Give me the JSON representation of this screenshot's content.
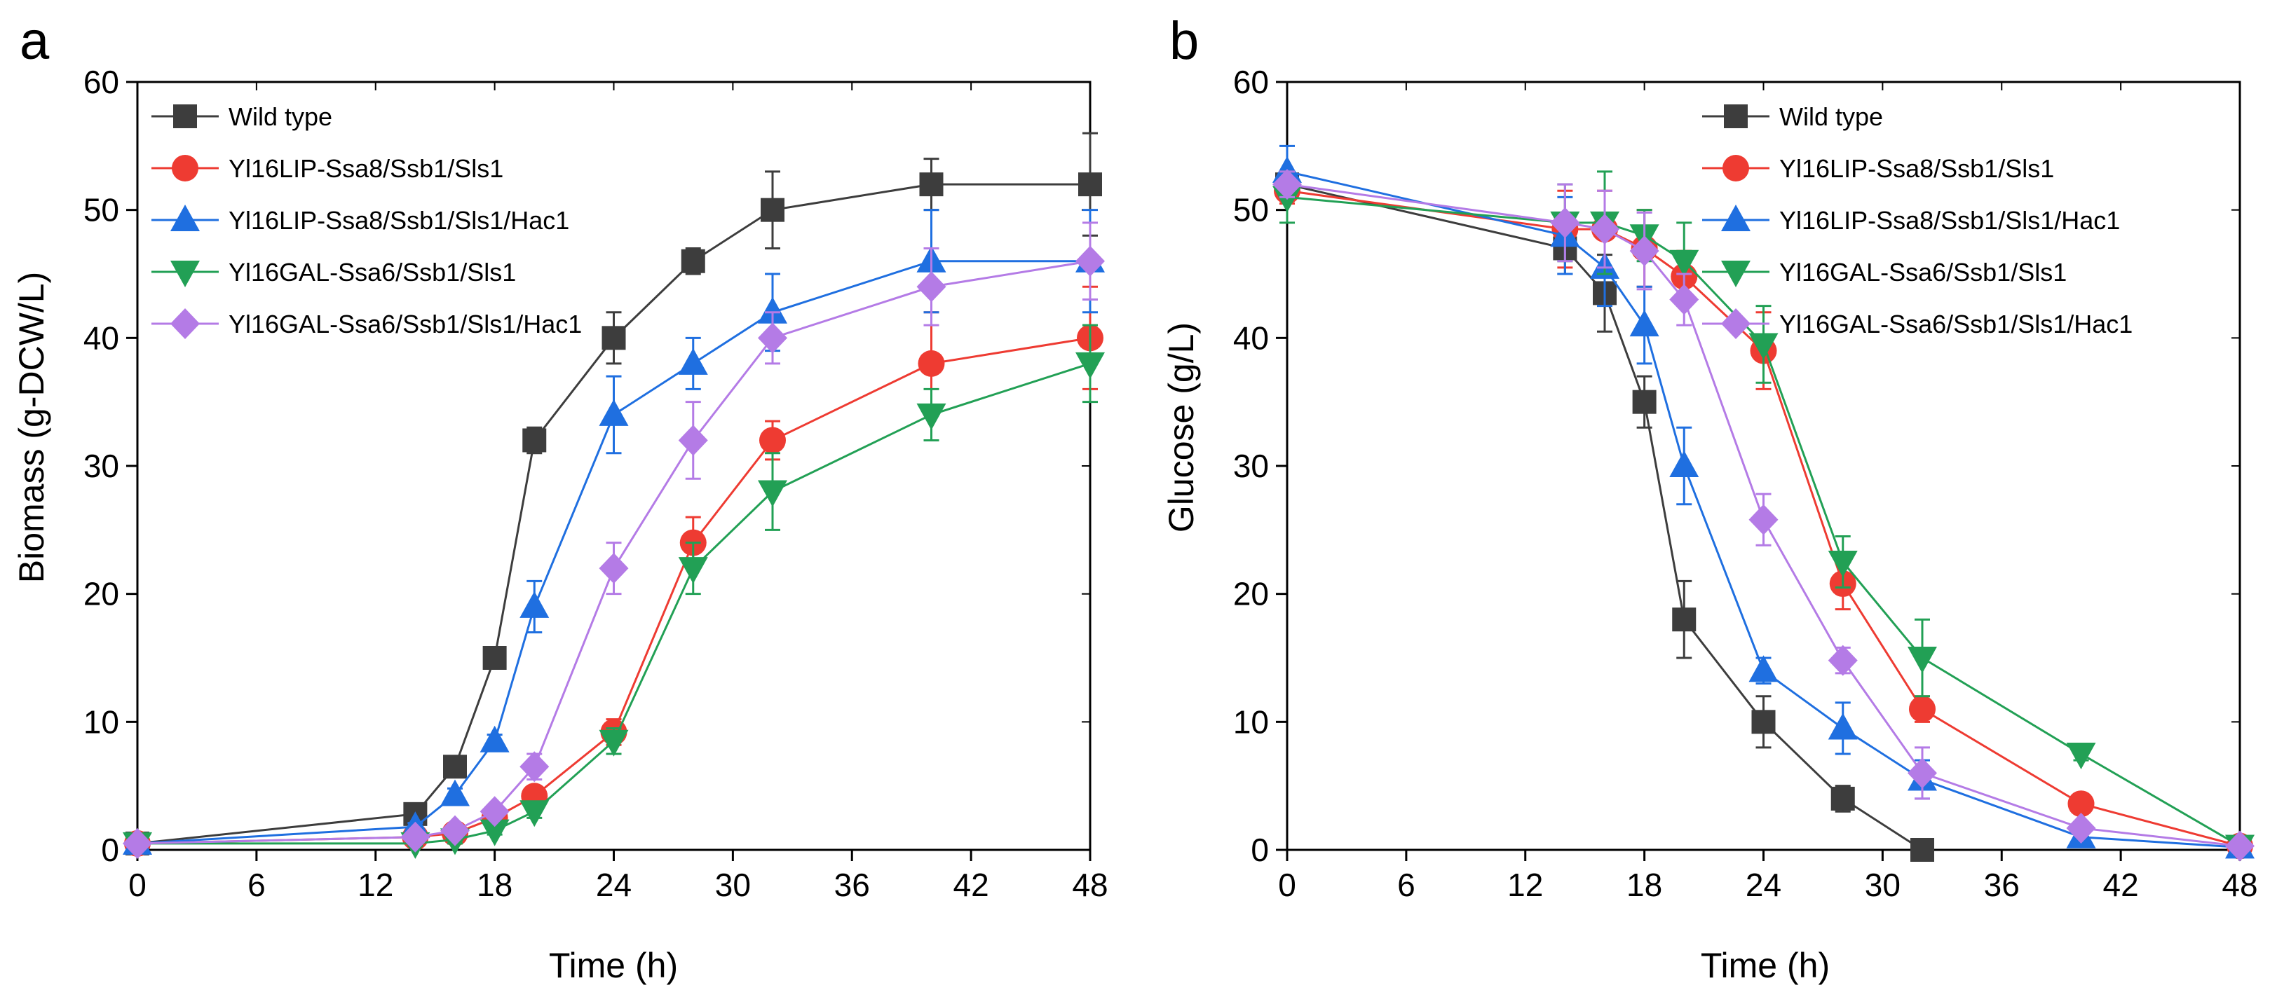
{
  "chart_data": [
    {
      "panel_label": "a",
      "type": "line",
      "xlabel": "Time (h)",
      "ylabel": "Biomass (g-DCW/L)",
      "xlim": [
        0,
        48
      ],
      "ylim": [
        0,
        60
      ],
      "xticks": [
        0,
        6,
        12,
        18,
        24,
        30,
        36,
        42,
        48
      ],
      "yticks": [
        0,
        10,
        20,
        30,
        40,
        50,
        60
      ],
      "legend_position": "top-left",
      "series": [
        {
          "name": "Wild type",
          "color": "#3d3d3d",
          "marker": "square",
          "x": [
            0,
            14,
            16,
            18,
            20,
            24,
            28,
            32,
            40,
            48
          ],
          "y": [
            0.5,
            2.8,
            6.5,
            15,
            32,
            40,
            46,
            50,
            52,
            52
          ],
          "err": [
            0.2,
            0.5,
            0.5,
            0.5,
            1,
            2,
            1,
            3,
            2,
            4
          ]
        },
        {
          "name": "Yl16LIP-Ssa8/Ssb1/Sls1",
          "color": "#ee3b32",
          "marker": "circle",
          "x": [
            0,
            14,
            16,
            18,
            20,
            24,
            28,
            32,
            40,
            48
          ],
          "y": [
            0.5,
            1.0,
            1.3,
            2.5,
            4.2,
            9.2,
            24,
            32,
            38,
            40
          ],
          "err": [
            0.2,
            0.3,
            0.3,
            0.5,
            0.5,
            1,
            2,
            1.5,
            4,
            4
          ]
        },
        {
          "name": "Yl16LIP-Ssa8/Ssb1/Sls1/Hac1",
          "color": "#1f6fe0",
          "marker": "triangle-up",
          "x": [
            0,
            14,
            16,
            18,
            20,
            24,
            28,
            32,
            40,
            48
          ],
          "y": [
            0.5,
            1.8,
            4.3,
            8.5,
            19,
            34,
            38,
            42,
            46,
            46
          ],
          "err": [
            0.2,
            0.3,
            0.5,
            0.5,
            2,
            3,
            2,
            3,
            4,
            4
          ]
        },
        {
          "name": "Yl16GAL-Ssa6/Ssb1/Sls1",
          "color": "#22a055",
          "marker": "triangle-down",
          "x": [
            0,
            14,
            16,
            18,
            20,
            24,
            28,
            32,
            40,
            48
          ],
          "y": [
            0.5,
            0.5,
            0.8,
            1.5,
            3.0,
            8.5,
            22,
            28,
            34,
            38
          ],
          "err": [
            0.2,
            0.2,
            0.3,
            0.3,
            0.5,
            1,
            2,
            3,
            2,
            3
          ]
        },
        {
          "name": "Yl16GAL-Ssa6/Ssb1/Sls1/Hac1",
          "color": "#b47be6",
          "marker": "diamond",
          "x": [
            0,
            14,
            16,
            18,
            20,
            24,
            28,
            32,
            40,
            48
          ],
          "y": [
            0.5,
            1.0,
            1.5,
            3.0,
            6.5,
            22,
            32,
            40,
            44,
            46
          ],
          "err": [
            0.2,
            0.3,
            0.3,
            0.5,
            1,
            2,
            3,
            2,
            3,
            3
          ]
        }
      ]
    },
    {
      "panel_label": "b",
      "type": "line",
      "xlabel": "Time (h)",
      "ylabel": "Glucose (g/L)",
      "xlim": [
        0,
        48
      ],
      "ylim": [
        0,
        60
      ],
      "xticks": [
        0,
        6,
        12,
        18,
        24,
        30,
        36,
        42,
        48
      ],
      "yticks": [
        0,
        10,
        20,
        30,
        40,
        50,
        60
      ],
      "legend_position": "top-right",
      "series": [
        {
          "name": "Wild type",
          "color": "#3d3d3d",
          "marker": "square",
          "x": [
            0,
            14,
            16,
            18,
            20,
            24,
            28,
            32
          ],
          "y": [
            52,
            47,
            43.5,
            35,
            18,
            10,
            4,
            0
          ],
          "err": [
            1,
            2,
            3,
            2,
            3,
            2,
            1,
            0.3
          ]
        },
        {
          "name": "Yl16LIP-Ssa8/Ssb1/Sls1",
          "color": "#ee3b32",
          "marker": "circle",
          "x": [
            0,
            14,
            16,
            18,
            20,
            24,
            28,
            32,
            40,
            48
          ],
          "y": [
            51.5,
            48.5,
            48.5,
            47,
            44.8,
            39,
            20.8,
            11,
            3.6,
            0.3
          ],
          "err": [
            1,
            3,
            3,
            3,
            2,
            3,
            2,
            1,
            0.5,
            0.2
          ]
        },
        {
          "name": "Yl16LIP-Ssa8/Ssb1/Sls1/Hac1",
          "color": "#1f6fe0",
          "marker": "triangle-up",
          "x": [
            0,
            14,
            16,
            18,
            20,
            24,
            28,
            32,
            40,
            48
          ],
          "y": [
            53,
            48,
            45.5,
            41,
            30,
            14,
            9.5,
            5.5,
            1,
            0.2
          ],
          "err": [
            2,
            3,
            3,
            3,
            3,
            1,
            2,
            1.5,
            0.3,
            0.2
          ]
        },
        {
          "name": "Yl16GAL-Ssa6/Ssb1/Sls1",
          "color": "#22a055",
          "marker": "triangle-down",
          "x": [
            0,
            14,
            16,
            18,
            20,
            24,
            28,
            32,
            40,
            48
          ],
          "y": [
            51,
            49,
            49,
            48,
            46,
            39.5,
            22.5,
            15,
            7.5,
            0.3
          ],
          "err": [
            2,
            3,
            4,
            2,
            3,
            3,
            2,
            3,
            0.5,
            0.2
          ]
        },
        {
          "name": "Yl16GAL-Ssa6/Ssb1/Sls1/Hac1",
          "color": "#b47be6",
          "marker": "diamond",
          "x": [
            0,
            14,
            16,
            18,
            20,
            24,
            28,
            32,
            40,
            48
          ],
          "y": [
            52,
            49,
            48.5,
            46.8,
            43,
            25.8,
            14.8,
            6,
            1.7,
            0.3
          ],
          "err": [
            1,
            3,
            3,
            3,
            2,
            2,
            1,
            2,
            0.5,
            0.2
          ]
        }
      ]
    }
  ]
}
